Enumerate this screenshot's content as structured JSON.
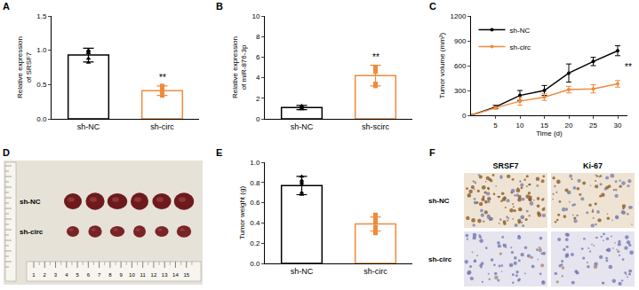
{
  "chart_data": [
    {
      "panel": "A",
      "type": "bar",
      "categories": [
        "sh-NC",
        "sh-circ"
      ],
      "ylabel": "Relative expression of SRSF7",
      "values": [
        0.93,
        0.41
      ],
      "errors": [
        0.1,
        0.07
      ],
      "points": [
        [
          0.98,
          0.96,
          0.88,
          0.82,
          1.0
        ],
        [
          0.45,
          0.42,
          0.36,
          0.34,
          0.48
        ]
      ],
      "colors": [
        "#000000",
        "#f08a3c"
      ],
      "ylim": [
        0,
        1.5
      ],
      "yticks": [
        {
          "value": 0,
          "label": "0.0"
        },
        0.5,
        {
          "value": 1,
          "label": "1.0"
        },
        1.5
      ],
      "grid": false,
      "annotations": [
        {
          "text": "**",
          "category": "sh-circ"
        }
      ]
    },
    {
      "panel": "B",
      "type": "bar",
      "categories": [
        "sh-NC",
        "sh-scirc"
      ],
      "ylabel": "Relative expression of miR-876-3p",
      "values": [
        1.1,
        4.2
      ],
      "errors": [
        0.2,
        1.0
      ],
      "points": [
        [
          1.0,
          1.2,
          1.1,
          0.95,
          1.25
        ],
        [
          5.0,
          4.6,
          3.4,
          3.2,
          4.8
        ]
      ],
      "colors": [
        "#000000",
        "#f08a3c"
      ],
      "ylim": [
        0,
        10
      ],
      "yticks": [
        0,
        2,
        4,
        6,
        8,
        10
      ],
      "grid": false,
      "annotations": [
        {
          "text": "**",
          "category": "sh-scirc"
        }
      ]
    },
    {
      "panel": "C",
      "type": "line",
      "xlabel": "Time (d)",
      "ylabel": "Tumor volume (mm³)",
      "x": [
        0,
        5,
        10,
        15,
        20,
        25,
        30
      ],
      "series": [
        {
          "name": "sh-NC",
          "color": "#000000",
          "marker": "circle",
          "values": [
            0,
            100,
            240,
            300,
            510,
            650,
            780
          ],
          "errors": [
            0,
            20,
            60,
            60,
            110,
            50,
            60
          ]
        },
        {
          "name": "sh-circ",
          "color": "#f08a3c",
          "marker": "circle",
          "values": [
            0,
            90,
            170,
            220,
            310,
            320,
            380
          ],
          "errors": [
            0,
            15,
            50,
            40,
            40,
            50,
            40
          ]
        }
      ],
      "xlim": [
        0,
        32
      ],
      "xticks": [
        5,
        10,
        15,
        20,
        25,
        30
      ],
      "ylim": [
        0,
        1200
      ],
      "yticks": [
        0,
        300,
        600,
        900,
        1200
      ],
      "grid": false,
      "legend": "top-left",
      "annotations": [
        {
          "text": "**",
          "x": 30
        }
      ]
    },
    {
      "panel": "E",
      "type": "bar",
      "categories": [
        "sh-NC",
        "sh-circ"
      ],
      "ylabel": "Tumor weight (g)",
      "values": [
        0.77,
        0.39
      ],
      "errors": [
        0.09,
        0.07
      ],
      "points": [
        [
          0.86,
          0.82,
          0.78,
          0.7,
          0.68,
          0.8
        ],
        [
          0.48,
          0.41,
          0.36,
          0.3,
          0.34,
          0.44
        ]
      ],
      "colors": [
        "#000000",
        "#f08a3c"
      ],
      "ylim": [
        0,
        1.0
      ],
      "yticks": [
        {
          "value": 0,
          "label": "0.0"
        },
        0.2,
        0.4,
        0.6,
        0.8,
        {
          "value": 1,
          "label": "1.0"
        }
      ],
      "grid": false
    }
  ],
  "images": [
    {
      "panel": "D",
      "row_labels": [
        "sh-NC",
        "sh-circ"
      ],
      "ruler_labels": [
        "1",
        "2",
        "3",
        "4",
        "5",
        "6",
        "7",
        "8",
        "9",
        "10",
        "11",
        "12",
        "13",
        "14",
        "15"
      ]
    },
    {
      "panel": "F",
      "column_labels": [
        "SRSF7",
        "Ki-67"
      ],
      "row_labels": [
        "sh-NC",
        "sh-circ"
      ]
    }
  ]
}
